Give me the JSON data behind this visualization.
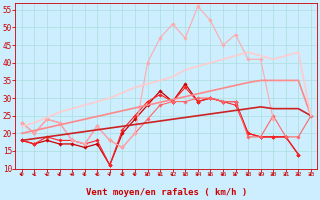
{
  "xlabel": "Vent moyen/en rafales ( km/h )",
  "background_color": "#cceeff",
  "grid_color": "#aadddd",
  "ylim": [
    10,
    57
  ],
  "yticks": [
    10,
    15,
    20,
    25,
    30,
    35,
    40,
    45,
    50,
    55
  ],
  "lines": [
    {
      "color": "#cc0000",
      "linewidth": 0.9,
      "marker": "D",
      "markersize": 1.8,
      "values": [
        18,
        17,
        18,
        17,
        17,
        16,
        17,
        11,
        20,
        24,
        28,
        32,
        29,
        34,
        29,
        30,
        29,
        29,
        20,
        19,
        19,
        19,
        14,
        null
      ]
    },
    {
      "color": "#ff2222",
      "linewidth": 0.8,
      "marker": "D",
      "markersize": 1.8,
      "values": [
        18,
        17,
        19,
        18,
        18,
        17,
        18,
        11,
        21,
        25,
        29,
        31,
        29,
        33,
        29,
        30,
        29,
        28,
        20,
        19,
        19,
        19,
        14,
        null
      ]
    },
    {
      "color": "#ff6666",
      "linewidth": 0.8,
      "marker": "D",
      "markersize": 1.8,
      "values": [
        23,
        20,
        24,
        23,
        18,
        17,
        22,
        18,
        16,
        20,
        24,
        28,
        29,
        29,
        30,
        30,
        29,
        29,
        19,
        19,
        25,
        19,
        19,
        25
      ]
    },
    {
      "color": "#ffaaaa",
      "linewidth": 0.8,
      "marker": "D",
      "markersize": 1.8,
      "values": [
        23,
        20,
        24,
        23,
        18,
        17,
        22,
        18,
        16,
        20,
        40,
        47,
        51,
        47,
        56,
        52,
        45,
        48,
        41,
        41,
        24,
        null,
        null,
        null
      ]
    },
    {
      "color": "#cc2222",
      "linewidth": 1.2,
      "marker": null,
      "markersize": 0,
      "values": [
        18,
        18.5,
        19,
        19.5,
        20,
        20.5,
        21,
        21.5,
        22,
        22.5,
        23,
        23.5,
        24,
        24.5,
        25,
        25.5,
        26,
        26.5,
        27,
        27.5,
        27,
        27,
        27,
        25
      ]
    },
    {
      "color": "#ff8888",
      "linewidth": 1.2,
      "marker": null,
      "markersize": 0,
      "values": [
        20,
        20.8,
        21.6,
        22.4,
        23.2,
        24,
        24.8,
        25.6,
        26.4,
        27.2,
        28,
        28.8,
        29.6,
        30.4,
        31.2,
        32,
        32.8,
        33.6,
        34.4,
        35,
        35,
        35,
        35,
        25
      ]
    },
    {
      "color": "#ffcccc",
      "linewidth": 1.2,
      "marker": null,
      "markersize": 0,
      "values": [
        22,
        23,
        24.5,
        26,
        27,
        28,
        29,
        30,
        31.5,
        33,
        34,
        35,
        36,
        38,
        39,
        40,
        41,
        42,
        43,
        42,
        41,
        42,
        43,
        25
      ]
    }
  ],
  "tick_color": "#cc0000",
  "xlabel_color": "#cc0000",
  "xlabel_fontsize": 6.5,
  "xlabel_fontweight": "bold",
  "ytick_labelsize": 5.5,
  "xtick_labelsize": 4.5
}
